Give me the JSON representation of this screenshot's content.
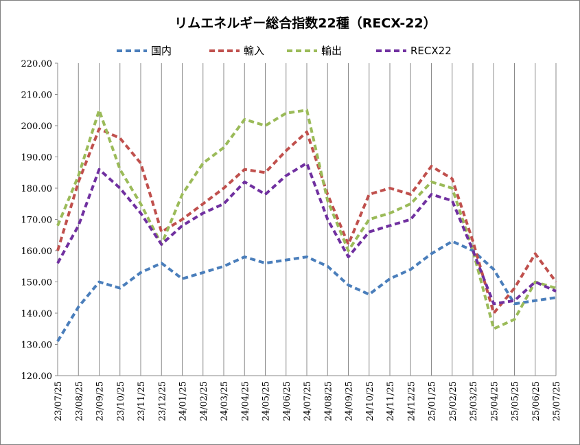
{
  "chart_data": {
    "type": "line",
    "title": "リムエネルギー総合指数22種（RECX-22）",
    "ylim": [
      120,
      220
    ],
    "y_ticks": [
      "220.00",
      "210.00",
      "200.00",
      "190.00",
      "180.00",
      "170.00",
      "160.00",
      "150.00",
      "140.00",
      "130.00",
      "120.00"
    ],
    "x_ticks": [
      "23/07/25",
      "23/08/25",
      "23/09/25",
      "23/10/25",
      "23/11/25",
      "23/12/25",
      "24/01/25",
      "24/02/25",
      "24/03/25",
      "24/04/25",
      "24/05/25",
      "24/06/25",
      "24/07/25",
      "24/08/25",
      "24/09/25",
      "24/10/25",
      "24/11/25",
      "24/12/25",
      "25/01/25",
      "25/02/25",
      "25/03/25",
      "25/04/25",
      "25/05/25",
      "25/06/25",
      "25/07/25"
    ],
    "grid": "vertical",
    "legend_position": "top",
    "series": [
      {
        "name": "国内",
        "color": "#4a7ebb",
        "values": [
          131,
          142,
          150,
          148,
          153,
          156,
          151,
          153,
          155,
          158,
          156,
          157,
          158,
          155,
          149,
          146,
          151,
          154,
          159,
          163,
          160,
          154,
          143,
          144,
          145
        ]
      },
      {
        "name": "輸入",
        "color": "#c0504d",
        "values": [
          160,
          182,
          199,
          196,
          188,
          166,
          170,
          175,
          180,
          186,
          185,
          192,
          198,
          178,
          162,
          178,
          180,
          178,
          187,
          183,
          163,
          140,
          148,
          159,
          150
        ]
      },
      {
        "name": "輸出",
        "color": "#9bbb59",
        "values": [
          168,
          184,
          205,
          186,
          175,
          162,
          178,
          188,
          193,
          202,
          200,
          204,
          205,
          176,
          160,
          170,
          172,
          175,
          182,
          180,
          160,
          135,
          138,
          150,
          148
        ]
      },
      {
        "name": "RECX22",
        "color": "#7030a0",
        "values": [
          156,
          168,
          186,
          180,
          172,
          162,
          168,
          172,
          175,
          182,
          178,
          184,
          188,
          170,
          158,
          166,
          168,
          170,
          178,
          176,
          160,
          143,
          144,
          150,
          147
        ]
      }
    ]
  }
}
